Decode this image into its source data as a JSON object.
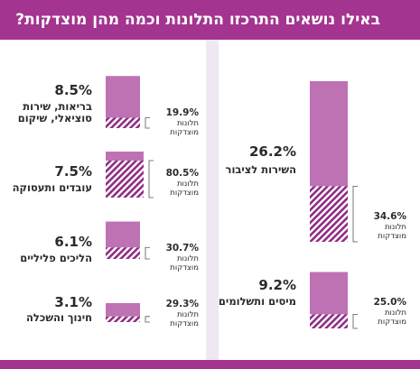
{
  "title": "באילו נושאים התרכזו התלונות וכמה מהן מוצדקות?",
  "colors": {
    "header": "#a3348f",
    "bar": "#be72b4",
    "hatch": "#8e2d83",
    "divider": "#ddd0e6"
  },
  "chart_data": {
    "type": "bar",
    "title": "באילו נושאים התרכזו התלונות וכמה מהן מוצדקות?",
    "items": [
      {
        "category": "בריאות, שירות סוציאלי, שיקום",
        "share_pct": 8.5,
        "share_label": "8.5%",
        "justified_pct": 19.9,
        "justified_label": "19.9%",
        "justified_text": "תלונות מוצדקות"
      },
      {
        "category": "עובדים ותעסוקה",
        "share_pct": 7.5,
        "share_label": "7.5%",
        "justified_pct": 80.5,
        "justified_label": "80.5%",
        "justified_text": "תלונות מוצדקות"
      },
      {
        "category": "הליכים פליליים",
        "share_pct": 6.1,
        "share_label": "6.1%",
        "justified_pct": 30.7,
        "justified_label": "30.7%",
        "justified_text": "תלונות מוצדקות"
      },
      {
        "category": "חינוך והשכלה",
        "share_pct": 3.1,
        "share_label": "3.1%",
        "justified_pct": 29.3,
        "justified_label": "29.3%",
        "justified_text": "תלונות מוצדקות"
      },
      {
        "category": "השירות לציבור",
        "share_pct": 26.2,
        "share_label": "26.2%",
        "justified_pct": 34.6,
        "justified_label": "34.6%",
        "justified_text": "תלונות מוצדקות"
      },
      {
        "category": "מיסים ותשלומים",
        "share_pct": 9.2,
        "share_label": "9.2%",
        "justified_pct": 25.0,
        "justified_label": "25.0%",
        "justified_text": "תלונות מוצדקות"
      }
    ]
  }
}
